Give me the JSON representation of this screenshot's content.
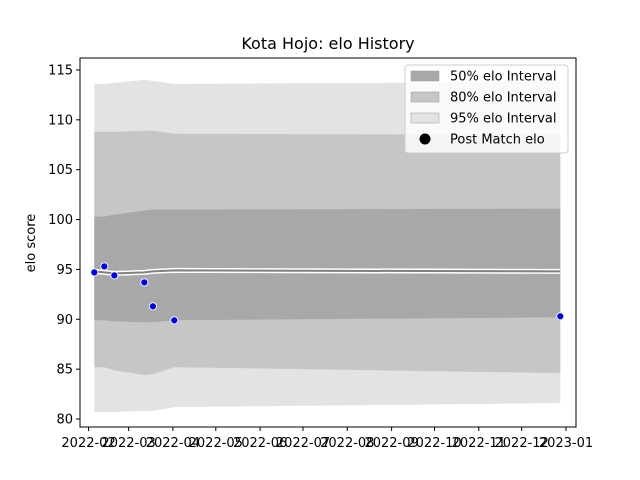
{
  "chart_data": {
    "type": "area",
    "title": "Kota Hojo: elo History",
    "xlabel": "",
    "ylabel": "elo score",
    "ylim": [
      79.2,
      116.2
    ],
    "xlim": [
      "2022-01-26",
      "2023-01-08"
    ],
    "yticks": [
      80,
      85,
      90,
      95,
      100,
      105,
      110,
      115
    ],
    "xticks": [
      "2022-02",
      "2022-03",
      "2022-04",
      "2022-05",
      "2022-06",
      "2022-07",
      "2022-08",
      "2022-09",
      "2022-10",
      "2022-11",
      "2022-12",
      "2023-01"
    ],
    "grid": false,
    "legend_position": "upper right",
    "legend": [
      {
        "label": "50% elo Interval",
        "color": "#a8a8a8"
      },
      {
        "label": "80% elo Interval",
        "color": "#c6c6c6"
      },
      {
        "label": "95% elo Interval",
        "color": "#e3e3e3"
      },
      {
        "label": "Post Match elo",
        "color": "#000000"
      }
    ],
    "x": [
      "2022-02-05",
      "2022-02-12",
      "2022-02-19",
      "2022-03-12",
      "2022-03-18",
      "2022-04-02",
      "2022-12-28"
    ],
    "post_match_elo": [
      94.7,
      95.3,
      94.4,
      93.7,
      91.3,
      89.9,
      90.3
    ],
    "mean": [
      94.8,
      94.7,
      94.6,
      94.7,
      94.8,
      94.9,
      94.8
    ],
    "intervals": [
      {
        "name": "95% elo Interval",
        "color": "#e3e3e3",
        "lower": [
          80.7,
          80.7,
          80.7,
          80.8,
          80.8,
          81.2,
          81.6
        ],
        "upper": [
          113.6,
          113.6,
          113.7,
          114.0,
          113.9,
          113.6,
          113.8
        ]
      },
      {
        "name": "80% elo Interval",
        "color": "#c6c6c6",
        "lower": [
          85.2,
          85.2,
          84.9,
          84.4,
          84.5,
          85.2,
          84.6
        ],
        "upper": [
          108.8,
          108.8,
          108.8,
          108.9,
          108.9,
          108.6,
          108.5
        ]
      },
      {
        "name": "50% elo Interval",
        "color": "#a8a8a8",
        "lower": [
          89.9,
          89.9,
          89.8,
          89.7,
          89.7,
          89.9,
          90.2
        ],
        "upper": [
          100.3,
          100.3,
          100.5,
          100.9,
          101.0,
          101.0,
          101.1
        ]
      }
    ],
    "marker_color": "#0000ee",
    "mean_line_color": "#808080"
  }
}
